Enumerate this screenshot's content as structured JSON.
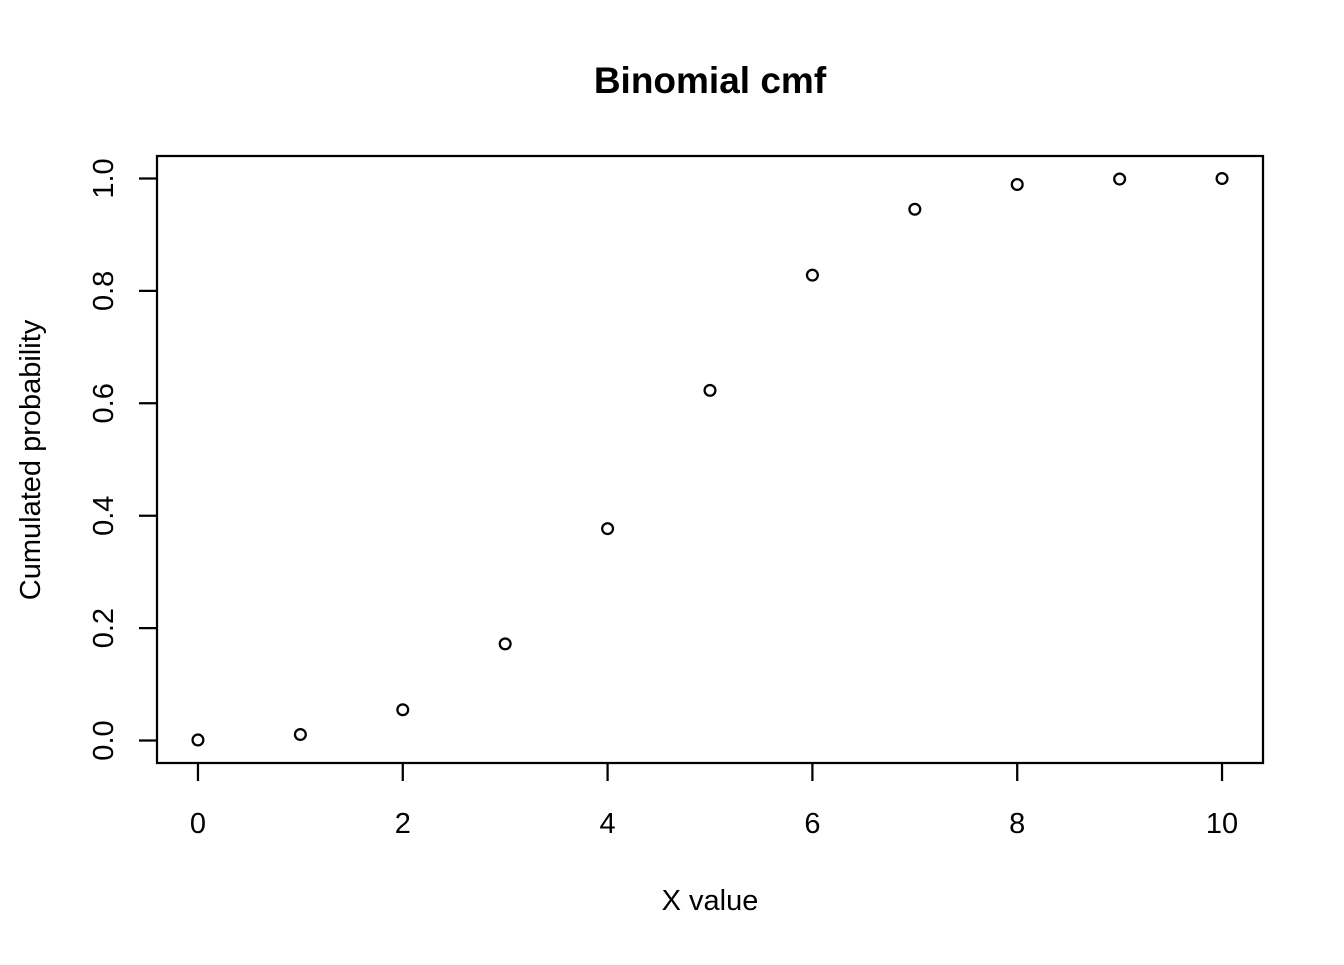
{
  "chart_data": {
    "type": "scatter",
    "title": "Binomial cmf",
    "xlabel": "X value",
    "ylabel": "Cumulated probability",
    "x": [
      0,
      1,
      2,
      3,
      4,
      5,
      6,
      7,
      8,
      9,
      10
    ],
    "y": [
      0.001,
      0.0107,
      0.0547,
      0.1719,
      0.377,
      0.623,
      0.8281,
      0.9453,
      0.9893,
      0.999,
      1.0
    ],
    "x_ticks": [
      0,
      2,
      4,
      6,
      8,
      10
    ],
    "x_tick_labels": [
      "0",
      "2",
      "4",
      "6",
      "8",
      "10"
    ],
    "y_ticks": [
      0.0,
      0.2,
      0.4,
      0.6,
      0.8,
      1.0
    ],
    "y_tick_labels": [
      "0.0",
      "0.2",
      "0.4",
      "0.6",
      "0.8",
      "1.0"
    ],
    "xlim": [
      -0.4,
      10.4
    ],
    "ylim": [
      -0.04,
      1.04
    ],
    "marker": "open-circle",
    "grid": false,
    "legend": "none",
    "colors": {
      "points": "#000000",
      "axis": "#000000",
      "text": "#000000",
      "background": "#ffffff"
    }
  }
}
